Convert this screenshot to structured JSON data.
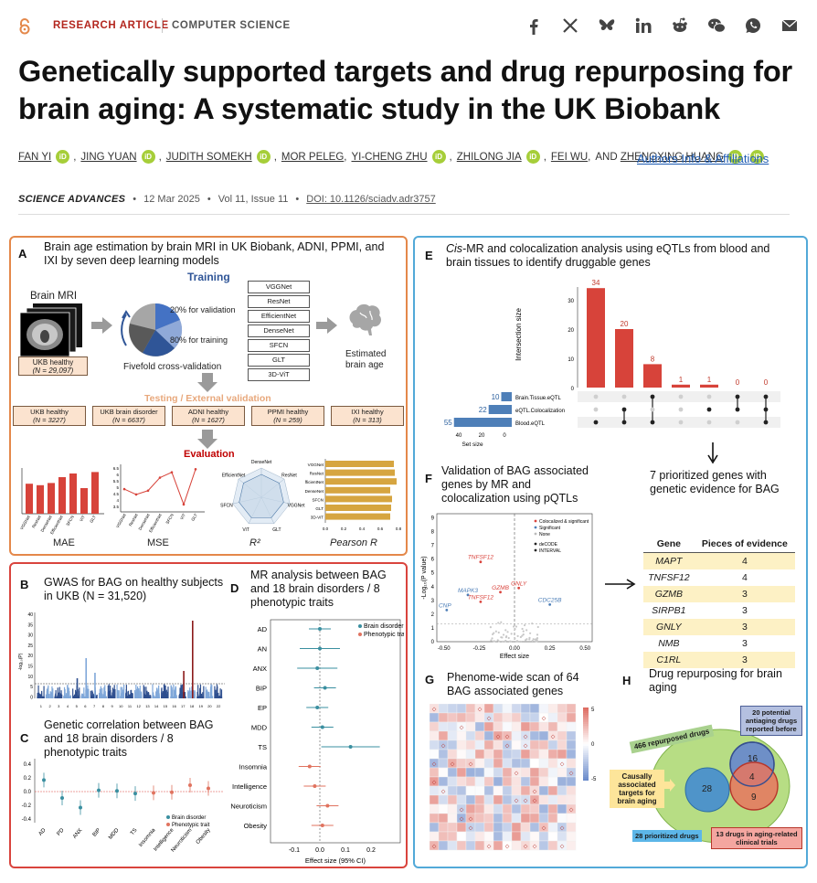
{
  "header": {
    "category_primary": "RESEARCH ARTICLE",
    "category_secondary": "COMPUTER SCIENCE",
    "share_icons": [
      "facebook-icon",
      "x-icon",
      "bluesky-icon",
      "linkedin-icon",
      "reddit-icon",
      "wechat-icon",
      "whatsapp-icon",
      "email-icon"
    ]
  },
  "article": {
    "title": "Genetically supported targets and drug repurposing for brain aging: A systematic study in the UK Biobank",
    "authors": [
      "FAN YI",
      "JING YUAN",
      "JUDITH SOMEKH",
      "MOR PELEG",
      "YI-CHENG ZHU",
      "ZHILONG JIA",
      "FEI WU",
      "AND ZHENGXING HUANG"
    ],
    "authors_link": "Authors Info & Affiliations",
    "journal": "SCIENCE ADVANCES",
    "date": "12 Mar 2025",
    "volume": "Vol 11, Issue 11",
    "doi": "DOI: 10.1126/sciadv.adr3757",
    "orcid_label": "iD",
    "bullet": "•"
  },
  "figure": {
    "panel_a": {
      "label": "A",
      "title": "Brain age estimation by brain MRI in UK Biobank, ADNI, PPMI, and IXI by seven deep learning models",
      "training": "Training",
      "mri_label": "Brain MRI",
      "ukb_healthy": "UKB healthy",
      "ukb_n": "(N = 29,097)",
      "validation_text": "20% for validation",
      "training_text": "80% for training",
      "cv_text": "Fivefold cross-validation",
      "models": [
        "VGGNet",
        "ResNet",
        "EfficientNet",
        "DenseNet",
        "SFCN",
        "GLT",
        "3D-ViT"
      ],
      "estimated": "Estimated brain age",
      "testing": "Testing / External validation",
      "cohorts": [
        {
          "name": "UKB healthy",
          "n": "(N = 3227)"
        },
        {
          "name": "UKB brain disorder",
          "n": "(N = 6637)"
        },
        {
          "name": "ADNI healthy",
          "n": "(N = 1627)"
        },
        {
          "name": "PPMI healthy",
          "n": "(N = 259)"
        },
        {
          "name": "IXI healthy",
          "n": "(N = 313)"
        }
      ],
      "evaluation": "Evaluation",
      "metrics": [
        "MAE",
        "MSE",
        "R²",
        "Pearson R"
      ],
      "mae_values": [
        4.1,
        3.9,
        4.2,
        5.0,
        5.5,
        3.5,
        5.7
      ],
      "mse_values": [
        4.0,
        3.3,
        3.8,
        5.5,
        6.2,
        2.0,
        6.6
      ],
      "mse_yticks": [
        "6.5",
        "6",
        "5.5",
        "5",
        "4.5",
        "4",
        "3.5"
      ],
      "pearson_values": [
        0.75,
        0.76,
        0.78,
        0.71,
        0.73,
        0.72,
        0.71
      ],
      "pearson_ticks": [
        "0.0",
        "0.2",
        "0.4",
        "0.6",
        "0.8"
      ],
      "axis_models_short": [
        "VGGNet",
        "ResNet",
        "DenseNet",
        "EfficientNet",
        "SFCN",
        "ViT",
        "GLT"
      ],
      "radar_labels": [
        "DenseNet",
        "ResNet",
        "VGGNet",
        "GLT",
        "ViT",
        "SFCN",
        "EfficientNet"
      ]
    },
    "panel_b": {
      "label": "B",
      "title": "GWAS for BAG on healthy subjects in UKB (N = 31,520)",
      "ylabel": "-log₁₀(P)",
      "yticks": [
        "40",
        "35",
        "30",
        "25",
        "20",
        "15",
        "10",
        "5",
        "0"
      ],
      "chromosomes": [
        "1",
        "2",
        "3",
        "4",
        "5",
        "6",
        "7",
        "8",
        "9",
        "10",
        "11",
        "12",
        "13",
        "14",
        "15",
        "16",
        "17",
        "18",
        "19",
        "20",
        "22"
      ]
    },
    "panel_c": {
      "label": "C",
      "title": "Genetic correlation between BAG and 18 brain disorders / 8 phenotypic traits",
      "categories": [
        "AD",
        "PD",
        "ANX",
        "BIP",
        "MDD",
        "TS",
        "Insomnia",
        "Intelligence",
        "Neuroticism",
        "Obesity"
      ],
      "values": [
        0.18,
        -0.1,
        -0.25,
        0.02,
        0.01,
        -0.03,
        -0.02,
        -0.01,
        0.1,
        0.05
      ],
      "yticks": [
        "0.4",
        "0.2",
        "0.0",
        "-0.2",
        "-0.4"
      ],
      "legend": [
        "Brain disorder",
        "Phenotypic trait"
      ]
    },
    "panel_d": {
      "label": "D",
      "title": "MR analysis between BAG and 18 brain disorders / 8 phenotypic traits",
      "traits": [
        "AD",
        "AN",
        "ANX",
        "BIP",
        "EP",
        "MDD",
        "TS",
        "Insomnia",
        "Intelligence",
        "Neuroticism",
        "Obesity"
      ],
      "estimates": [
        0.0,
        0.0,
        -0.01,
        0.02,
        -0.01,
        0.01,
        0.12,
        -0.04,
        -0.02,
        0.03,
        0.01
      ],
      "xticks": [
        "-0.1",
        "0.0",
        "0.1",
        "0.2"
      ],
      "xlabel": "Effect size (95% CI)",
      "legend": [
        "Brain disorder",
        "Phenotypic trait"
      ]
    },
    "panel_e": {
      "label": "E",
      "title": "Cis-MR and colocalization analysis using eQTLs from blood and brain tissues to identify druggable genes",
      "ylabel": "Intersection size",
      "intersections": [
        34,
        20,
        8,
        1,
        1,
        0,
        0
      ],
      "sets": [
        {
          "name": "Brain.Tissue.eQTL",
          "size": 10
        },
        {
          "name": "eQTL.Colocalization",
          "size": 22
        },
        {
          "name": "Blood.eQTL",
          "size": 55
        }
      ],
      "set_size_label": "Set size",
      "set_ticks": [
        "40",
        "20",
        "0"
      ],
      "yticks": [
        "30",
        "20",
        "10",
        "0"
      ]
    },
    "panel_f": {
      "label": "F",
      "title": "Validation of BAG associated genes by MR and colocalization using pQTLs",
      "ylabel": "-Log₁₀(P value)",
      "xlabel": "Effect size",
      "xticks": [
        "-0.50",
        "-0.25",
        "0.00",
        "0.25",
        "0.50"
      ],
      "yticks": [
        "9",
        "8",
        "7",
        "6",
        "5",
        "4",
        "3",
        "2",
        "1",
        "0"
      ],
      "legend": [
        "Colocalized & significant",
        "Significant",
        "None",
        "deCODE",
        "INTERVAL"
      ],
      "genes": [
        {
          "name": "TNFSF12",
          "x": -0.24,
          "y": 5.8,
          "color": "#d9443d"
        },
        {
          "name": "GNLY",
          "x": 0.03,
          "y": 3.9,
          "color": "#d9443d"
        },
        {
          "name": "MAPK3",
          "x": -0.33,
          "y": 3.4,
          "color": "#4e7fb8"
        },
        {
          "name": "GZMB",
          "x": -0.1,
          "y": 3.6,
          "color": "#d9443d"
        },
        {
          "name": "TNFSF12",
          "x": -0.24,
          "y": 2.9,
          "color": "#d9443d"
        },
        {
          "name": "CDC25B",
          "x": 0.25,
          "y": 2.7,
          "color": "#4e7fb8"
        },
        {
          "name": "CNP",
          "x": -0.48,
          "y": 2.3,
          "color": "#4e7fb8"
        }
      ]
    },
    "prioritized": {
      "title": "7 prioritized genes with genetic evidence for BAG",
      "col_gene": "Gene",
      "col_evidence": "Pieces of evidence",
      "rows": [
        {
          "gene": "MAPT",
          "n": "4"
        },
        {
          "gene": "TNFSF12",
          "n": "4"
        },
        {
          "gene": "GZMB",
          "n": "3"
        },
        {
          "gene": "SIRPB1",
          "n": "3"
        },
        {
          "gene": "GNLY",
          "n": "3"
        },
        {
          "gene": "NMB",
          "n": "3"
        },
        {
          "gene": "C1RL",
          "n": "3"
        }
      ]
    },
    "panel_g": {
      "label": "G",
      "title": "Phenome-wide scan of 64 BAG associated genes",
      "legend_ticks": [
        "5",
        "0",
        "-5"
      ]
    },
    "panel_h": {
      "label": "H",
      "title": "Drug repurposing for brain aging",
      "repurposed": "466 repurposed drugs",
      "antiaging": "20 potential antiaging drugs reported before",
      "causal": "Causally associated targets for brain aging",
      "prioritized_drugs": "28 prioritized drugs",
      "clinical": "13 drugs in aging-related clinical trials",
      "n28": "28",
      "n16": "16",
      "n4": "4",
      "n9": "9"
    }
  },
  "colors": {
    "accent_red": "#b3261e",
    "link_blue": "#1e5cb3",
    "panel_orange": "#e4884a",
    "panel_red": "#d9443d",
    "panel_blue": "#52a9d8",
    "bar_red": "#d7433a",
    "bar_gold": "#d6a540"
  }
}
